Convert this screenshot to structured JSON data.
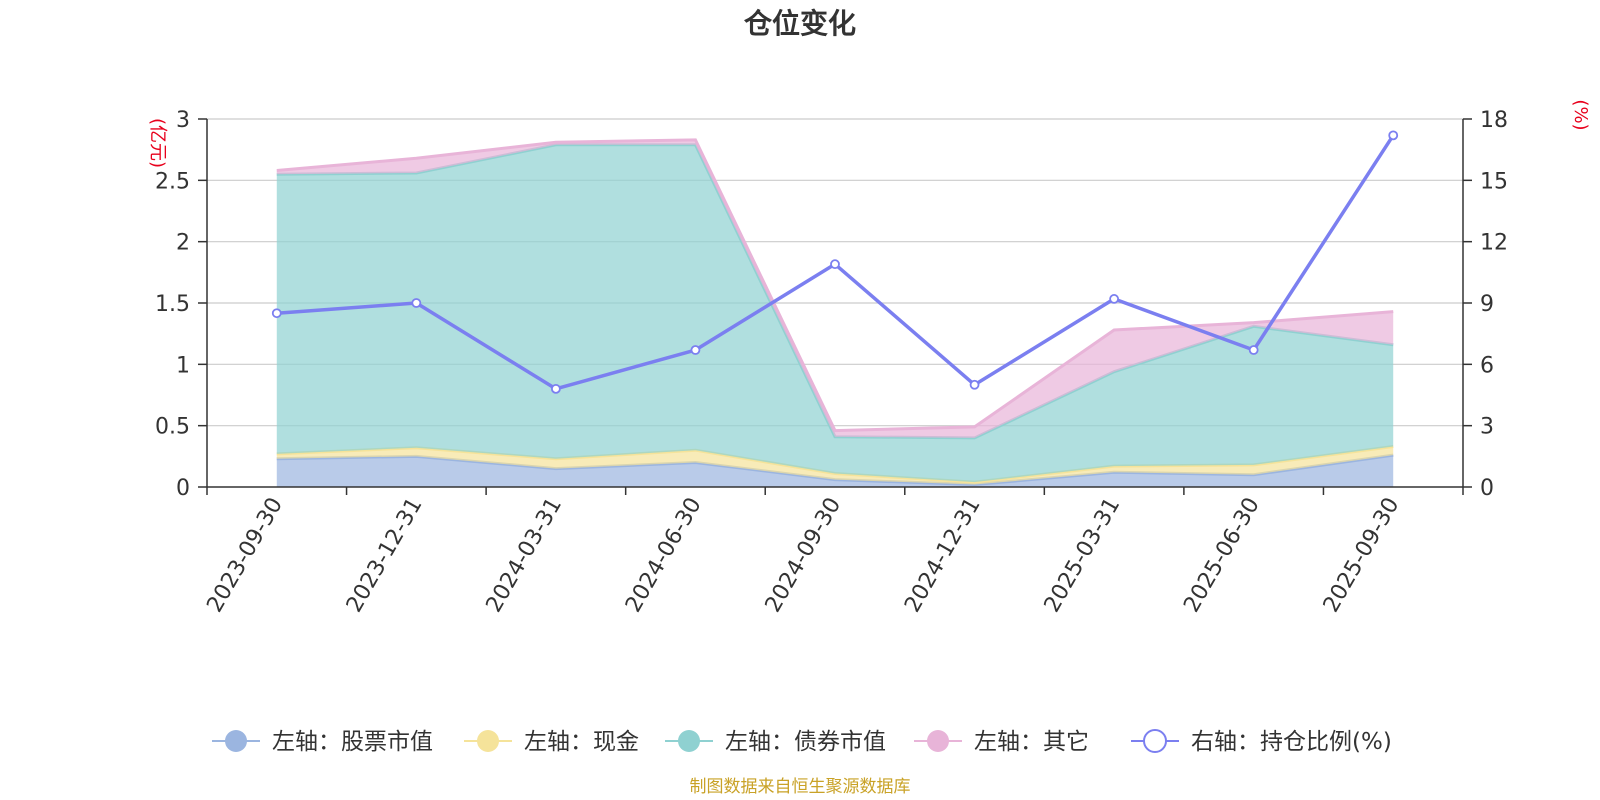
{
  "colors": {
    "stock": "#9bb5e0",
    "cash": "#f5e39a",
    "bond": "#8fd1d1",
    "other": "#e8b4d8",
    "ratio": "#7b7ff0",
    "unit": "#e8001c",
    "source": "#c9a227",
    "grid": "#cccccc"
  },
  "chart_data": {
    "type": "area",
    "title": "仓位变化",
    "x": [
      "2023-09-30",
      "2023-12-31",
      "2024-03-31",
      "2024-06-30",
      "2024-09-30",
      "2024-12-31",
      "2025-03-31",
      "2025-06-30",
      "2025-09-30"
    ],
    "left_axis": {
      "unit_label": "(亿元)",
      "ylim": [
        0,
        3
      ],
      "ticks": [
        "0",
        "0.5",
        "1",
        "1.5",
        "2",
        "2.5",
        "3"
      ]
    },
    "right_axis": {
      "unit_label": "(%)",
      "ylim": [
        0,
        18
      ],
      "ticks": [
        "0",
        "3",
        "6",
        "9",
        "12",
        "15",
        "18"
      ]
    },
    "stacked": true,
    "grid": true,
    "legend_position": "bottom",
    "series": [
      {
        "key": "stock",
        "name": "左轴：股票市值",
        "axis": "left",
        "values": [
          0.23,
          0.25,
          0.15,
          0.2,
          0.06,
          0.02,
          0.12,
          0.1,
          0.26
        ]
      },
      {
        "key": "cash",
        "name": "左轴：现金",
        "axis": "left",
        "values": [
          0.04,
          0.07,
          0.08,
          0.1,
          0.05,
          0.02,
          0.05,
          0.08,
          0.07
        ]
      },
      {
        "key": "bond",
        "name": "左轴：债券市值",
        "axis": "left",
        "values": [
          2.28,
          2.24,
          2.56,
          2.49,
          0.3,
          0.36,
          0.77,
          1.13,
          0.83
        ]
      },
      {
        "key": "other",
        "name": "左轴：其它",
        "axis": "left",
        "values": [
          0.03,
          0.12,
          0.02,
          0.04,
          0.05,
          0.09,
          0.34,
          0.03,
          0.27
        ]
      },
      {
        "key": "ratio",
        "name": "右轴：持仓比例(%)",
        "axis": "right",
        "values": [
          8.5,
          9.0,
          4.8,
          6.7,
          10.9,
          5.0,
          9.2,
          6.7,
          17.2
        ]
      }
    ]
  },
  "source_text": "制图数据来自恒生聚源数据库"
}
